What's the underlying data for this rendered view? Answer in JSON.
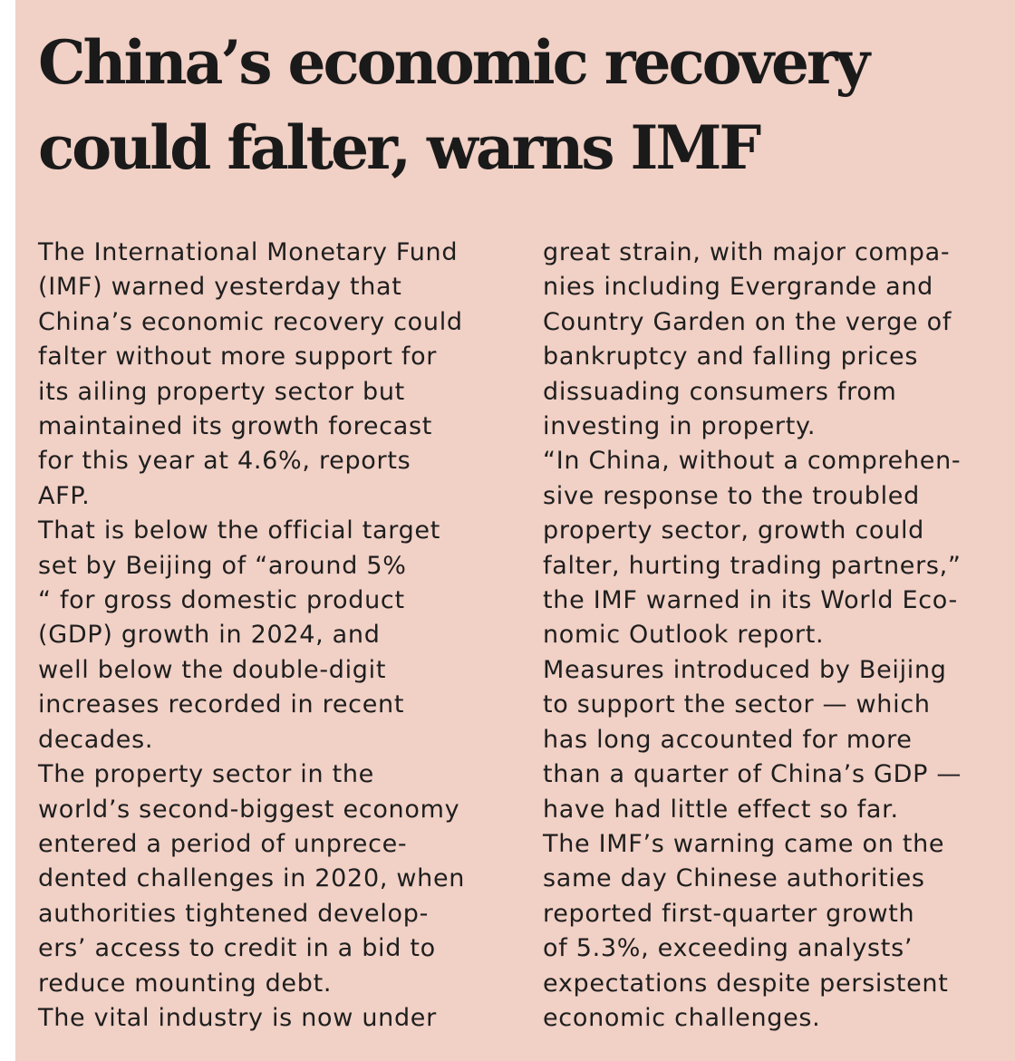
{
  "article": {
    "headline_lines": [
      "China’s economic recovery",
      "could falter, warns IMF"
    ],
    "column_left_lines": [
      "The International Monetary Fund",
      "(IMF) warned yesterday that",
      "China’s economic recovery could",
      "falter without more support for",
      "its ailing property sector but",
      "maintained its growth forecast",
      "for this year at 4.6%, reports",
      "AFP.",
      "That is below the official target",
      "set by Beijing of “around 5%",
      "“ for gross domestic product",
      "(GDP) growth in 2024, and",
      "well below the double-digit",
      "increases recorded in recent",
      "decades.",
      "The property sector in the",
      "world’s second-biggest economy",
      "entered a period of unprece-",
      "dented challenges in 2020, when",
      "authorities tightened develop-",
      "ers’ access to credit in a bid to",
      "reduce mounting debt.",
      "The vital industry is now under"
    ],
    "column_right_lines": [
      "great strain, with major compa-",
      "nies including Evergrande and",
      "Country Garden on the verge of",
      "bankruptcy and falling prices",
      "dissuading consumers from",
      "investing in property.",
      "“In China, without a comprehen-",
      "sive response to the troubled",
      "property sector, growth could",
      "falter, hurting trading partners,”",
      "the IMF warned in its World Eco-",
      "nomic Outlook report.",
      "Measures introduced by Beijing",
      "to support the sector — which",
      "has long accounted for more",
      "than a quarter of China’s GDP —",
      "have had little effect so far.",
      "The IMF’s warning came on the",
      "same day Chinese authorities",
      "reported first-quarter growth",
      "of 5.3%, exceeding analysts’",
      "expectations despite persistent",
      "economic challenges."
    ]
  },
  "colors": {
    "background": "#f1d0c5",
    "text": "#1e1e1e"
  }
}
